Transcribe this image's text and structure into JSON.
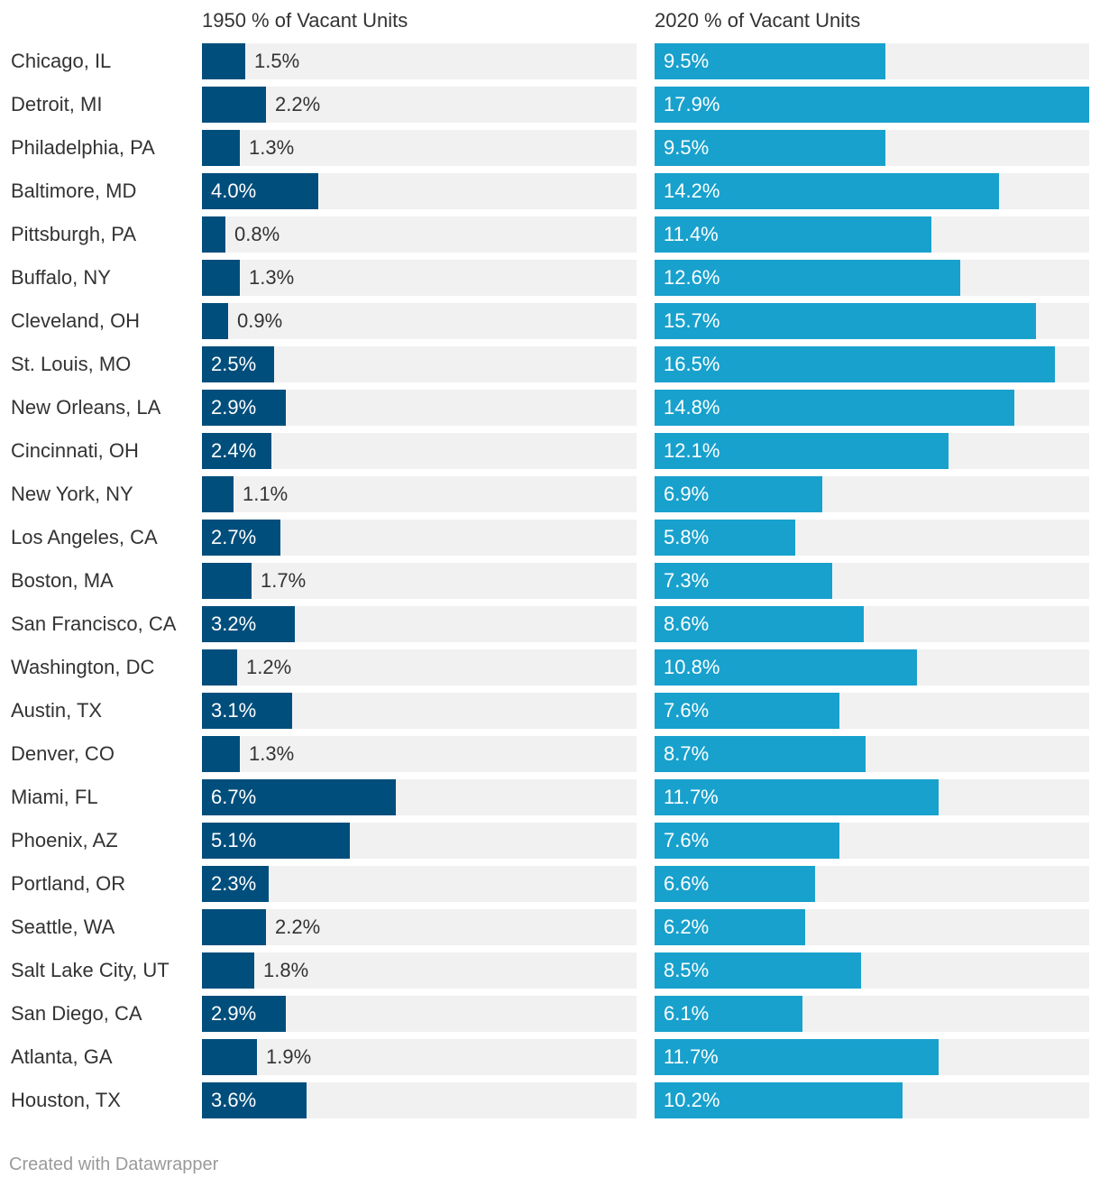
{
  "chart_data": {
    "type": "bar",
    "series": [
      {
        "name": "1950 % of Vacant Units",
        "color": "#004e7c",
        "max": 15,
        "values": [
          1.5,
          2.2,
          1.3,
          4.0,
          0.8,
          1.3,
          0.9,
          2.5,
          2.9,
          2.4,
          1.1,
          2.7,
          1.7,
          3.2,
          1.2,
          3.1,
          1.3,
          6.7,
          5.1,
          2.3,
          2.2,
          1.8,
          2.9,
          1.9,
          3.6
        ],
        "labels": [
          "1.5%",
          "2.2%",
          "1.3%",
          "4.0%",
          "0.8%",
          "1.3%",
          "0.9%",
          "2.5%",
          "2.9%",
          "2.4%",
          "1.1%",
          "2.7%",
          "1.7%",
          "3.2%",
          "1.2%",
          "3.1%",
          "1.3%",
          "6.7%",
          "5.1%",
          "2.3%",
          "2.2%",
          "1.8%",
          "2.9%",
          "1.9%",
          "3.6%"
        ]
      },
      {
        "name": "2020 % of Vacant Units",
        "color": "#18a1cd",
        "max": 17.9,
        "values": [
          9.5,
          17.9,
          9.5,
          14.2,
          11.4,
          12.6,
          15.7,
          16.5,
          14.8,
          12.1,
          6.9,
          5.8,
          7.3,
          8.6,
          10.8,
          7.6,
          8.7,
          11.7,
          7.6,
          6.6,
          6.2,
          8.5,
          6.1,
          11.7,
          10.2
        ],
        "labels": [
          "9.5%",
          "17.9%",
          "9.5%",
          "14.2%",
          "11.4%",
          "12.6%",
          "15.7%",
          "16.5%",
          "14.8%",
          "12.1%",
          "6.9%",
          "5.8%",
          "7.3%",
          "8.6%",
          "10.8%",
          "7.6%",
          "8.7%",
          "11.7%",
          "7.6%",
          "6.6%",
          "6.2%",
          "8.5%",
          "6.1%",
          "11.7%",
          "10.2%"
        ]
      }
    ],
    "categories": [
      "Chicago, IL",
      "Detroit, MI",
      "Philadelphia, PA",
      "Baltimore, MD",
      "Pittsburgh, PA",
      "Buffalo, NY",
      "Cleveland, OH",
      "St. Louis, MO",
      "New Orleans, LA",
      "Cincinnati, OH",
      "New York, NY",
      "Los Angeles, CA",
      "Boston, MA",
      "San Francisco, CA",
      "Washington, DC",
      "Austin, TX",
      "Denver, CO",
      "Miami, FL",
      "Phoenix, AZ",
      "Portland, OR",
      "Seattle, WA",
      "Salt Lake City, UT",
      "San Diego, CA",
      "Atlanta, GA",
      "Houston, TX"
    ],
    "background_color": "#f1f1f1"
  },
  "footer": {
    "credit": "Created with Datawrapper"
  }
}
